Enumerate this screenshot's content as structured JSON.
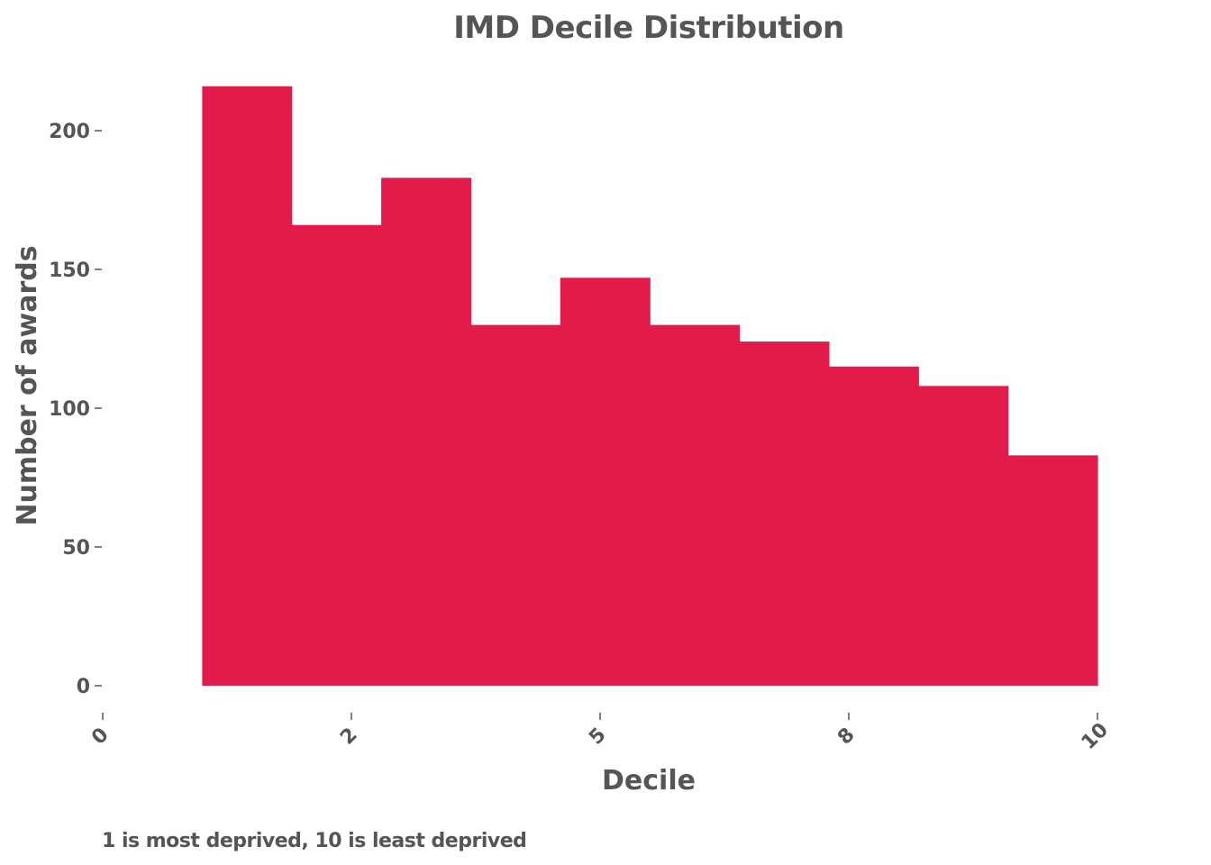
{
  "chart_data": {
    "type": "bar",
    "title": "IMD Decile Distribution",
    "xlabel": "Decile",
    "ylabel": "Number of awards",
    "note": "1 is most deprived, 10 is least deprived",
    "bin_edges": [
      1.0,
      1.9,
      2.8,
      3.7,
      4.6,
      5.5,
      6.4,
      7.3,
      8.2,
      9.1,
      10.0
    ],
    "values": [
      216,
      166,
      183,
      130,
      147,
      130,
      124,
      115,
      108,
      83
    ],
    "xlim": [
      0,
      10
    ],
    "ylim": [
      0,
      216
    ],
    "x_ticks": [
      {
        "value": 0,
        "label": "0"
      },
      {
        "value": 2.5,
        "label": "2"
      },
      {
        "value": 5,
        "label": "5"
      },
      {
        "value": 7.5,
        "label": "8"
      },
      {
        "value": 10,
        "label": "10"
      }
    ],
    "y_ticks": [
      {
        "value": 0,
        "label": "0"
      },
      {
        "value": 50,
        "label": "50"
      },
      {
        "value": 100,
        "label": "100"
      },
      {
        "value": 150,
        "label": "150"
      },
      {
        "value": 200,
        "label": "200"
      }
    ],
    "grid": false,
    "colors": {
      "bar": "#E31B4B",
      "text": "#555555"
    }
  }
}
